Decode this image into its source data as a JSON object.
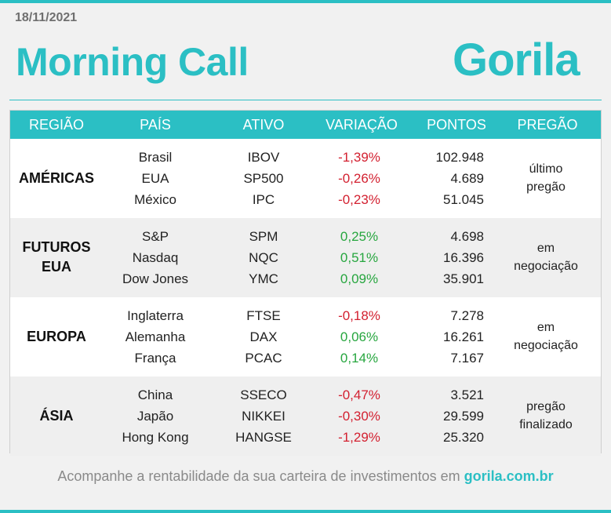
{
  "header": {
    "date": "18/11/2021",
    "title": "Morning Call",
    "logo_text": "Gorila",
    "accent_color": "#2bbfc4"
  },
  "table": {
    "columns": [
      "REGIÃO",
      "PAÍS",
      "ATIVO",
      "VARIAÇÃO",
      "PONTOS",
      "PREGÃO"
    ],
    "groups": [
      {
        "region_line1": "AMÉRICAS",
        "region_line2": "",
        "pregao_line1": "último",
        "pregao_line2": "pregão",
        "rows": [
          {
            "pais": "Brasil",
            "ativo": "IBOV",
            "variacao": "-1,39%",
            "pontos": "102.948",
            "trend": "neg"
          },
          {
            "pais": "EUA",
            "ativo": "SP500",
            "variacao": "-0,26%",
            "pontos": "4.689",
            "trend": "neg"
          },
          {
            "pais": "México",
            "ativo": "IPC",
            "variacao": "-0,23%",
            "pontos": "51.045",
            "trend": "neg"
          }
        ]
      },
      {
        "region_line1": "FUTUROS",
        "region_line2": "EUA",
        "pregao_line1": "em",
        "pregao_line2": "negociação",
        "rows": [
          {
            "pais": "S&P",
            "ativo": "SPM",
            "variacao": "0,25%",
            "pontos": "4.698",
            "trend": "pos"
          },
          {
            "pais": "Nasdaq",
            "ativo": "NQC",
            "variacao": "0,51%",
            "pontos": "16.396",
            "trend": "pos"
          },
          {
            "pais": "Dow Jones",
            "ativo": "YMC",
            "variacao": "0,09%",
            "pontos": "35.901",
            "trend": "pos"
          }
        ]
      },
      {
        "region_line1": "EUROPA",
        "region_line2": "",
        "pregao_line1": "em",
        "pregao_line2": "negociação",
        "rows": [
          {
            "pais": "Inglaterra",
            "ativo": "FTSE",
            "variacao": "-0,18%",
            "pontos": "7.278",
            "trend": "neg"
          },
          {
            "pais": "Alemanha",
            "ativo": "DAX",
            "variacao": "0,06%",
            "pontos": "16.261",
            "trend": "pos"
          },
          {
            "pais": "França",
            "ativo": "PCAC",
            "variacao": "0,14%",
            "pontos": "7.167",
            "trend": "pos"
          }
        ]
      },
      {
        "region_line1": "ÁSIA",
        "region_line2": "",
        "pregao_line1": "pregão",
        "pregao_line2": "finalizado",
        "rows": [
          {
            "pais": "China",
            "ativo": "SSECO",
            "variacao": "-0,47%",
            "pontos": "3.521",
            "trend": "neg"
          },
          {
            "pais": "Japão",
            "ativo": "NIKKEI",
            "variacao": "-0,30%",
            "pontos": "29.599",
            "trend": "neg"
          },
          {
            "pais": "Hong Kong",
            "ativo": "HANGSE",
            "variacao": "-1,29%",
            "pontos": "25.320",
            "trend": "neg"
          }
        ]
      }
    ]
  },
  "footer": {
    "text": "Acompanhe a rentabilidade da sua carteira de investimentos em ",
    "link": "gorila.com.br"
  },
  "colors": {
    "negative": "#d32030",
    "positive": "#27a63f"
  }
}
